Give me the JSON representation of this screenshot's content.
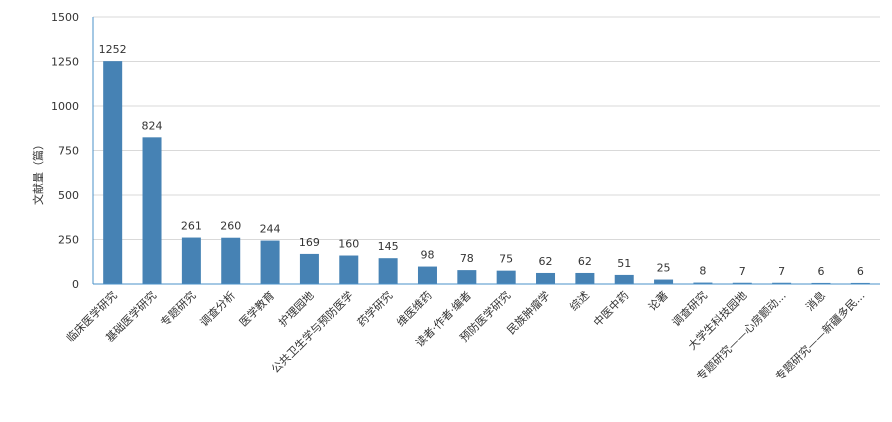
{
  "chart_data": {
    "type": "bar",
    "title": "",
    "xlabel": "",
    "ylabel": "文献量（篇）",
    "ylim": [
      0,
      1500
    ],
    "yticks": [
      0,
      250,
      500,
      750,
      1000,
      1250,
      1500
    ],
    "grid": true,
    "legend": "none",
    "bar_color": "#4682b4",
    "categories": [
      "临床医学研究",
      "基础医学研究",
      "专题研究",
      "调查分析",
      "医学教育",
      "护理园地",
      "公共卫生学与预防医学",
      "药学研究",
      "维医维药",
      "读者·作者·编者",
      "预防医学研究",
      "民族肿瘤学",
      "综述",
      "中医中药",
      "论著",
      "调查研究",
      "大学生科技园地",
      "专题研究——心房颤动...",
      "消息",
      "专题研究——新疆多民..."
    ],
    "values": [
      1252,
      824,
      261,
      260,
      244,
      169,
      160,
      145,
      98,
      78,
      75,
      62,
      62,
      51,
      25,
      8,
      7,
      7,
      6,
      6
    ]
  }
}
